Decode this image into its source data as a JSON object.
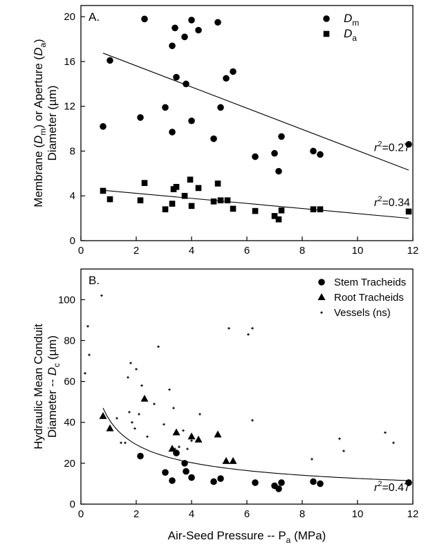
{
  "figure": {
    "xlabel": "Air-Seed Pressure -- P",
    "xlabel_sub": "a",
    "xlabel_unit": " (MPa)"
  },
  "chart_data": [
    {
      "type": "scatter",
      "panel_label": "A.",
      "ylabel_line1": [
        "Membrane (",
        "D",
        "m",
        ") or Aperture (",
        "D",
        "a",
        ")"
      ],
      "ylabel_line2": "Diameter (µm)",
      "xlim": [
        0,
        12
      ],
      "ylim": [
        0,
        21
      ],
      "xticks": [
        0,
        2,
        4,
        6,
        8,
        10,
        12
      ],
      "yticks": [
        0,
        4,
        8,
        12,
        16,
        20
      ],
      "legend_position": "top-right",
      "series": [
        {
          "name": "D",
          "name_sub": "m",
          "marker": "circle",
          "x": [
            0.8,
            1.05,
            2.15,
            2.3,
            3.05,
            3.3,
            3.3,
            3.4,
            3.45,
            3.75,
            3.8,
            4.0,
            4.0,
            4.25,
            4.8,
            4.95,
            5.05,
            5.25,
            5.5,
            6.3,
            7.0,
            7.15,
            7.25,
            8.4,
            8.65,
            11.85
          ],
          "y": [
            10.2,
            16.1,
            11.0,
            19.8,
            11.9,
            17.4,
            9.7,
            19.0,
            14.6,
            18.2,
            14.0,
            19.7,
            10.7,
            18.8,
            9.1,
            19.5,
            11.9,
            14.5,
            15.1,
            7.5,
            7.8,
            6.2,
            9.3,
            8.0,
            7.7,
            8.6
          ],
          "trend": {
            "x": [
              0.8,
              11.85
            ],
            "y": [
              16.75,
              6.3
            ]
          },
          "r2_label": "=0.27",
          "r2_at": [
            10.6,
            8.0
          ]
        },
        {
          "name": "D",
          "name_sub": "a",
          "marker": "square",
          "x": [
            0.8,
            1.05,
            2.15,
            2.3,
            3.05,
            3.3,
            3.35,
            3.45,
            3.75,
            3.95,
            4.0,
            4.25,
            4.8,
            4.95,
            5.05,
            5.3,
            5.5,
            6.3,
            7.0,
            7.15,
            7.25,
            8.4,
            8.65,
            11.85
          ],
          "y": [
            4.45,
            3.7,
            3.6,
            5.15,
            2.8,
            3.3,
            4.6,
            4.8,
            4.0,
            5.45,
            3.1,
            4.7,
            3.5,
            5.1,
            3.6,
            3.6,
            2.85,
            2.65,
            2.2,
            1.9,
            2.7,
            2.8,
            2.8,
            2.6
          ],
          "trend": {
            "x": [
              0.8,
              11.85
            ],
            "y": [
              4.5,
              2.0
            ]
          },
          "r2_label": "=0.34",
          "r2_at": [
            10.6,
            3.1
          ]
        }
      ]
    },
    {
      "type": "scatter",
      "panel_label": "B.",
      "ylabel_line1": "Hydraulic Mean Conduit",
      "ylabel_line2": [
        "Diameter -- ",
        "D",
        "c",
        " (µm)"
      ],
      "xlim": [
        0,
        12
      ],
      "ylim": [
        0,
        115
      ],
      "xticks": [
        0,
        2,
        4,
        6,
        8,
        10,
        12
      ],
      "yticks": [
        0,
        20,
        40,
        60,
        80,
        100
      ],
      "legend_position": "top-right",
      "trend_curve": {
        "x_from": 0.8,
        "x_to": 11.85,
        "y_from": 47,
        "y_to": 11.5,
        "shape": "power"
      },
      "r2_label": "=0.47",
      "r2_at": [
        10.6,
        6.5
      ],
      "series": [
        {
          "name": "Stem Tracheids",
          "marker": "circle",
          "x": [
            2.15,
            3.05,
            3.3,
            3.45,
            3.75,
            3.8,
            4.0,
            4.8,
            5.05,
            6.3,
            7.0,
            7.15,
            7.25,
            8.4,
            8.65,
            11.85
          ],
          "y": [
            23.5,
            15.5,
            11.5,
            25.0,
            20.0,
            16.0,
            13.0,
            11.0,
            12.5,
            10.5,
            9.0,
            7.5,
            10.5,
            11.0,
            10.0,
            10.5
          ]
        },
        {
          "name": "Root Tracheids",
          "marker": "triangle",
          "x": [
            0.8,
            1.05,
            2.3,
            3.3,
            3.45,
            4.0,
            4.25,
            4.95,
            5.25,
            5.5
          ],
          "y": [
            43.0,
            37.0,
            51.5,
            27.0,
            35.0,
            33.0,
            31.5,
            34.0,
            21.0,
            21.0
          ]
        },
        {
          "name": "Vessels (ns)",
          "marker": "plus",
          "x": [
            0.15,
            0.25,
            0.3,
            0.75,
            1.3,
            1.45,
            1.6,
            1.7,
            1.75,
            1.8,
            1.85,
            1.95,
            2.0,
            2.1,
            2.2,
            2.4,
            2.65,
            2.8,
            3.0,
            3.2,
            3.35,
            3.4,
            3.55,
            3.7,
            3.85,
            4.0,
            4.3,
            5.35,
            6.05,
            6.2,
            6.2,
            8.35,
            9.35,
            9.5,
            11.0,
            11.3
          ],
          "y": [
            64.0,
            87.0,
            73.0,
            102.0,
            42.0,
            30.0,
            30.0,
            62.0,
            45.0,
            69.0,
            40.0,
            37.0,
            66.0,
            44.0,
            58.0,
            33.0,
            49.0,
            77.0,
            39.0,
            56.0,
            47.0,
            27.0,
            28.0,
            36.0,
            27.0,
            31.0,
            44.0,
            86.0,
            83.0,
            86.0,
            41.0,
            22.0,
            32.0,
            26.0,
            35.0,
            30.0
          ]
        }
      ]
    }
  ]
}
